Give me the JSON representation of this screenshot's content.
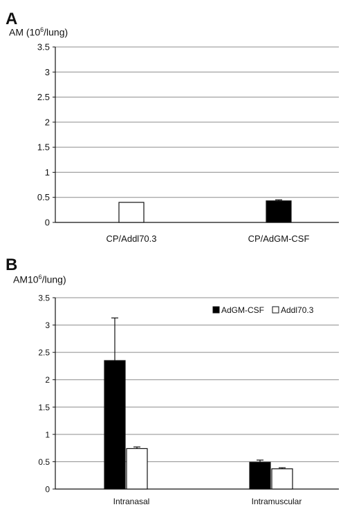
{
  "panels": {
    "a": {
      "letter": "A",
      "ylabel_pre": "AM (10",
      "ylabel_sup": "6",
      "ylabel_post": "/lung)"
    },
    "b": {
      "letter": "B",
      "ylabel_pre": "AM10",
      "ylabel_sup": "6",
      "ylabel_post": "/lung)"
    }
  },
  "chart_data": [
    {
      "type": "bar",
      "panel": "A",
      "categories": [
        "CP/Addl70.3",
        "CP/AdGM-CSF"
      ],
      "values": [
        0.4,
        0.43
      ],
      "errors": [
        0,
        0.02
      ],
      "bar_colors": [
        "#ffffff",
        "#000000"
      ],
      "ylim": [
        0,
        3.5
      ],
      "yticks": [
        "0",
        "0.5",
        "1",
        "1.5",
        "2",
        "2.5",
        "3",
        "3.5"
      ],
      "grid": true,
      "legend": false
    },
    {
      "type": "bar",
      "panel": "B",
      "categories": [
        "Intranasal",
        "Intramuscular"
      ],
      "series": [
        {
          "name": "AdGM-CSF",
          "color": "#000000",
          "values": [
            2.35,
            0.49
          ],
          "errors": [
            0.78,
            0.04
          ]
        },
        {
          "name": "Addl70.3",
          "color": "#ffffff",
          "values": [
            0.74,
            0.37
          ],
          "errors": [
            0.03,
            0.02
          ]
        }
      ],
      "ylim": [
        0,
        3.5
      ],
      "yticks": [
        "0",
        "0.5",
        "1",
        "1.5",
        "2",
        "2.5",
        "3",
        "3.5"
      ],
      "grid": true,
      "legend": "top-right"
    }
  ]
}
